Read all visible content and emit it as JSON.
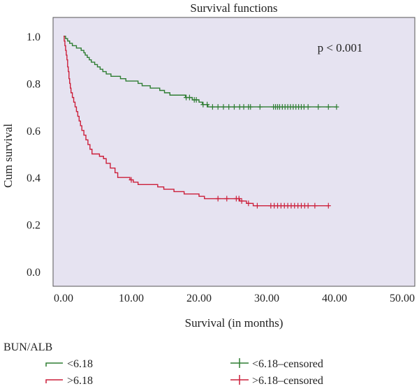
{
  "chart_data": {
    "type": "line",
    "title": "Survival functions",
    "xlabel": "Survival (in months)",
    "ylabel": "Cum survival",
    "xlim": [
      0,
      50
    ],
    "ylim": [
      0,
      1
    ],
    "x_ticks": [
      "0.00",
      "10.00",
      "20.00",
      "30.00",
      "40.00",
      "50.00"
    ],
    "y_ticks": [
      "0.0",
      "0.2",
      "0.4",
      "0.6",
      "0.8",
      "1.0"
    ],
    "annotation": "p < 0.001",
    "background_color": "#e6e3f1",
    "legend": {
      "title": "BUN/ALB",
      "placement": "bottom",
      "entries": [
        "<6.18",
        ">6.18",
        "<6.18–censored",
        ">6.18–censored"
      ]
    },
    "series": [
      {
        "name": "<6.18",
        "color": "#2e7d32",
        "steps": [
          [
            0.0,
            1.0
          ],
          [
            0.3,
            0.99
          ],
          [
            0.6,
            0.98
          ],
          [
            0.9,
            0.97
          ],
          [
            1.3,
            0.96
          ],
          [
            1.9,
            0.95
          ],
          [
            2.6,
            0.94
          ],
          [
            3.0,
            0.93
          ],
          [
            3.2,
            0.92
          ],
          [
            3.5,
            0.91
          ],
          [
            3.8,
            0.9
          ],
          [
            4.1,
            0.89
          ],
          [
            4.6,
            0.88
          ],
          [
            5.0,
            0.87
          ],
          [
            5.4,
            0.86
          ],
          [
            5.8,
            0.85
          ],
          [
            6.3,
            0.84
          ],
          [
            7.0,
            0.83
          ],
          [
            8.4,
            0.82
          ],
          [
            9.2,
            0.81
          ],
          [
            11.0,
            0.8
          ],
          [
            11.6,
            0.79
          ],
          [
            12.8,
            0.78
          ],
          [
            14.2,
            0.77
          ],
          [
            14.9,
            0.76
          ],
          [
            15.7,
            0.75
          ],
          [
            18.0,
            0.74
          ],
          [
            19.0,
            0.73
          ],
          [
            20.0,
            0.72
          ],
          [
            20.5,
            0.71
          ],
          [
            21.3,
            0.7
          ],
          [
            40.3,
            0.7
          ]
        ],
        "censored_x": [
          18.1,
          18.6,
          19.3,
          19.6,
          20.6,
          21.2,
          22.0,
          22.8,
          23.6,
          24.4,
          25.2,
          26.0,
          26.6,
          27.3,
          27.6,
          29.0,
          31.0,
          31.3,
          31.6,
          31.9,
          32.3,
          32.7,
          33.1,
          33.5,
          33.9,
          34.3,
          34.7,
          35.1,
          35.5,
          36.1,
          37.6,
          39.1,
          40.3
        ]
      },
      {
        "name": ">6.18",
        "color": "#cc1f3a",
        "steps": [
          [
            0.0,
            1.0
          ],
          [
            0.1,
            0.98
          ],
          [
            0.2,
            0.96
          ],
          [
            0.3,
            0.94
          ],
          [
            0.4,
            0.92
          ],
          [
            0.5,
            0.9
          ],
          [
            0.6,
            0.87
          ],
          [
            0.7,
            0.85
          ],
          [
            0.8,
            0.82
          ],
          [
            0.9,
            0.8
          ],
          [
            1.0,
            0.78
          ],
          [
            1.1,
            0.76
          ],
          [
            1.3,
            0.74
          ],
          [
            1.5,
            0.72
          ],
          [
            1.7,
            0.7
          ],
          [
            1.9,
            0.68
          ],
          [
            2.1,
            0.66
          ],
          [
            2.3,
            0.64
          ],
          [
            2.5,
            0.62
          ],
          [
            2.7,
            0.6
          ],
          [
            3.0,
            0.58
          ],
          [
            3.3,
            0.56
          ],
          [
            3.6,
            0.54
          ],
          [
            3.9,
            0.52
          ],
          [
            4.2,
            0.5
          ],
          [
            5.3,
            0.49
          ],
          [
            5.9,
            0.48
          ],
          [
            6.3,
            0.46
          ],
          [
            6.9,
            0.44
          ],
          [
            7.6,
            0.42
          ],
          [
            8.0,
            0.4
          ],
          [
            9.8,
            0.39
          ],
          [
            10.3,
            0.38
          ],
          [
            11.0,
            0.37
          ],
          [
            13.9,
            0.36
          ],
          [
            14.8,
            0.35
          ],
          [
            16.3,
            0.34
          ],
          [
            17.8,
            0.33
          ],
          [
            20.0,
            0.32
          ],
          [
            20.8,
            0.31
          ],
          [
            26.0,
            0.3
          ],
          [
            27.0,
            0.29
          ],
          [
            28.0,
            0.28
          ],
          [
            39.2,
            0.28
          ]
        ],
        "censored_x": [
          10.0,
          22.8,
          24.1,
          25.5,
          25.9,
          26.3,
          27.3,
          28.6,
          30.6,
          31.1,
          31.6,
          32.1,
          32.6,
          33.1,
          33.6,
          34.1,
          34.6,
          35.1,
          35.6,
          36.1,
          37.1,
          39.1
        ]
      }
    ]
  }
}
